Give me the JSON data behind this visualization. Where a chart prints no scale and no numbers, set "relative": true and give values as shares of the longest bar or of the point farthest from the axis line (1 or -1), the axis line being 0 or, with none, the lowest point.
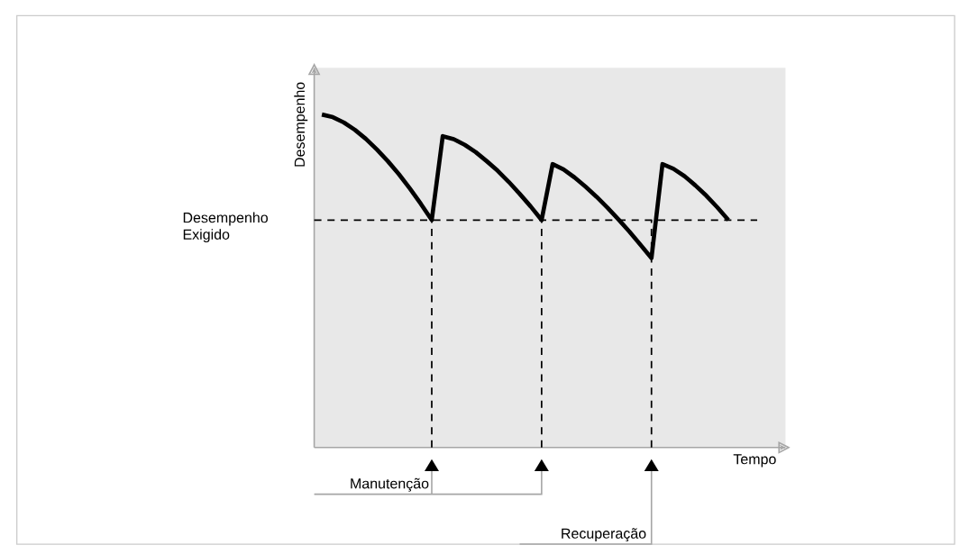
{
  "chart_data": {
    "type": "line",
    "relative": true,
    "xlabel": "Tempo",
    "ylabel": "Desempenho",
    "line_style": "solid",
    "categories": [
      null,
      null,
      null,
      null,
      null,
      null,
      null,
      null,
      null,
      null,
      null,
      null,
      null,
      null,
      null,
      null,
      null,
      null,
      null,
      null,
      null,
      null,
      null,
      null,
      null,
      null,
      null,
      null,
      null,
      null,
      null,
      null,
      null,
      null,
      null,
      null,
      null,
      null
    ],
    "series": [
      {
        "color": "#000000",
        "values": [
          1.0,
          0.992,
          0.976,
          0.954,
          0.927,
          0.895,
          0.86,
          0.821,
          0.778,
          0.732,
          0.683,
          0.935,
          0.926,
          0.909,
          0.887,
          0.86,
          0.831,
          0.798,
          0.762,
          0.724,
          0.683,
          0.851,
          0.835,
          0.811,
          0.783,
          0.753,
          0.72,
          0.685,
          0.648,
          0.609,
          0.569,
          0.851,
          0.837,
          0.815,
          0.787,
          0.756,
          0.721,
          0.683
        ]
      }
    ],
    "ref_lines": [
      {
        "axis": "y",
        "value": 0.683,
        "label": "Desempenho Exigido",
        "line_style": "dashed"
      },
      {
        "axis": "x",
        "line_style": "dashed"
      },
      {
        "axis": "x",
        "line_style": "dashed"
      },
      {
        "axis": "x",
        "line_style": "dashed"
      }
    ],
    "annotations": [
      "Manutenção",
      "Recuperação"
    ]
  }
}
